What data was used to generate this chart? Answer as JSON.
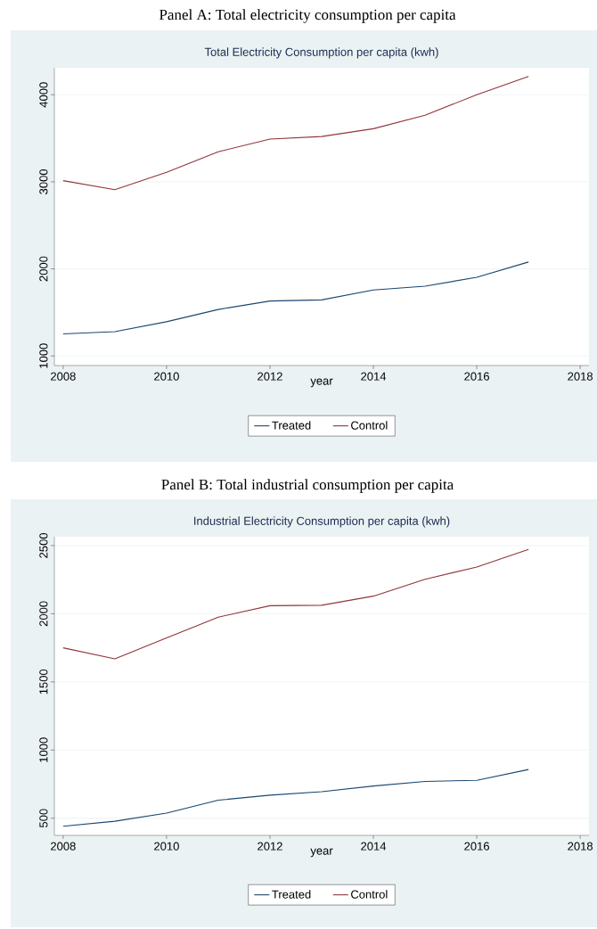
{
  "chart_data": [
    {
      "type": "line",
      "title": "Panel A: Total electricity consumption per capita",
      "subtitle": "Total Electricity Consumption per capita (kwh)",
      "xlabel": "year",
      "x": [
        2008,
        2009,
        2010,
        2011,
        2012,
        2013,
        2014,
        2015,
        2016,
        2017
      ],
      "series": [
        {
          "name": "Treated",
          "color": "#1a476f",
          "values": [
            1253,
            1279,
            1393,
            1534,
            1631,
            1644,
            1758,
            1802,
            1903,
            2079
          ]
        },
        {
          "name": "Control",
          "color": "#90353b",
          "values": [
            3013,
            2910,
            3110,
            3345,
            3490,
            3520,
            3610,
            3765,
            4000,
            4210
          ]
        }
      ],
      "xlim": [
        2007.83,
        2018.17
      ],
      "ylim": [
        890,
        4310
      ],
      "xticks": [
        2008,
        2010,
        2012,
        2014,
        2016,
        2018
      ],
      "yticks": [
        1000,
        2000,
        3000,
        4000
      ],
      "grid": "y",
      "legend": "bottom"
    },
    {
      "type": "line",
      "title": "Panel B: Total industrial consumption per capita",
      "subtitle": "Industrial Electricity Consumption per capita (kwh)",
      "xlabel": "year",
      "x": [
        2008,
        2009,
        2010,
        2011,
        2012,
        2013,
        2014,
        2015,
        2016,
        2017
      ],
      "series": [
        {
          "name": "Treated",
          "color": "#1a476f",
          "values": [
            441,
            478,
            537,
            632,
            669,
            694,
            736,
            770,
            778,
            857
          ]
        },
        {
          "name": "Control",
          "color": "#90353b",
          "values": [
            1750,
            1669,
            1823,
            1975,
            2059,
            2062,
            2129,
            2253,
            2343,
            2472
          ]
        }
      ],
      "xlim": [
        2007.83,
        2018.17
      ],
      "ylim": [
        374,
        2565
      ],
      "xticks": [
        2008,
        2010,
        2012,
        2014,
        2016,
        2018
      ],
      "yticks": [
        500,
        1000,
        1500,
        2000,
        2500
      ],
      "grid": "y",
      "legend": "bottom"
    }
  ]
}
